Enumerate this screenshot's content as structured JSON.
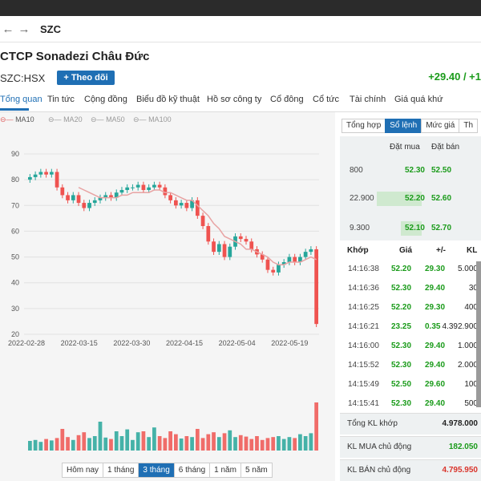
{
  "nav": {
    "back_icon": "arrow-left-icon",
    "forward_icon": "arrow-right-icon",
    "ticker": "SZC"
  },
  "header": {
    "title": "CTCP Sonadezi Châu Đức",
    "code": "SZC:HSX",
    "follow": "+ Theo dõi",
    "change": "+29.40 / +1"
  },
  "tabs": [
    "Tổng quan",
    "Tin tức",
    "Cộng đồng",
    "Biểu đồ kỹ thuật",
    "Hồ sơ công ty",
    "Cổ đông",
    "Cổ tức",
    "Tài chính",
    "Giá quá khứ"
  ],
  "legend": [
    "MA10",
    "MA20",
    "MA50",
    "MA100"
  ],
  "ranges": [
    "Hôm nay",
    "1 tháng",
    "3 tháng",
    "6 tháng",
    "1 năm",
    "5 năm"
  ],
  "right_tabs": [
    "Tổng hợp",
    "Sổ lệnh",
    "Mức giá",
    "Th"
  ],
  "orderbook": {
    "bid_label": "Đặt mua",
    "ask_label": "Đặt bán",
    "rows": [
      {
        "vol": "800",
        "bid": "52.30",
        "ask": "52.50"
      },
      {
        "vol": "22.900",
        "bid": "52.20",
        "ask": "52.60"
      },
      {
        "vol": "9.300",
        "bid": "52.10",
        "ask": "52.70"
      }
    ]
  },
  "trades": {
    "headers": [
      "Khớp",
      "Giá",
      "+/-",
      "KL"
    ],
    "rows": [
      {
        "time": "14:16:38",
        "price": "52.20",
        "chg": "29.30",
        "vol": "5.000"
      },
      {
        "time": "14:16:36",
        "price": "52.30",
        "chg": "29.40",
        "vol": "30"
      },
      {
        "time": "14:16:25",
        "price": "52.20",
        "chg": "29.30",
        "vol": "400"
      },
      {
        "time": "14:16:21",
        "price": "23.25",
        "chg": "0.35",
        "vol": "4.392.900"
      },
      {
        "time": "14:16:00",
        "price": "52.30",
        "chg": "29.40",
        "vol": "1.000"
      },
      {
        "time": "14:15:52",
        "price": "52.30",
        "chg": "29.40",
        "vol": "2.000"
      },
      {
        "time": "14:15:49",
        "price": "52.50",
        "chg": "29.60",
        "vol": "100"
      },
      {
        "time": "14:15:41",
        "price": "52.30",
        "chg": "29.40",
        "vol": "500"
      }
    ]
  },
  "summary": [
    {
      "label": "Tổng KL khớp",
      "value": "4.978.000",
      "color": "#222222"
    },
    {
      "label": "KL MUA chủ động",
      "value": "182.050",
      "color": "#1a9b1a"
    },
    {
      "label": "KL BÁN chủ động",
      "value": "4.795.950",
      "color": "#d9342b"
    }
  ],
  "colors": {
    "up": "#26a69a",
    "down": "#ef5350",
    "accent": "#1f6fb4",
    "ma": "#e8a3a3"
  },
  "chart_data": {
    "type": "candlestick",
    "y_ticks": [
      90,
      80,
      70,
      60,
      50,
      40,
      30,
      20
    ],
    "ylim": [
      20,
      90
    ],
    "x_ticks": [
      "2022-02-28",
      "2022-03-15",
      "2022-03-30",
      "2022-04-15",
      "2022-05-04",
      "2022-05-19"
    ],
    "closes": [
      81,
      82,
      83,
      82,
      83,
      77,
      74,
      72,
      74,
      71,
      69,
      71,
      72,
      73,
      74,
      73,
      75,
      76,
      77,
      77,
      78,
      76,
      77,
      78,
      77,
      74,
      72,
      70,
      71,
      69,
      72,
      66,
      62,
      56,
      52,
      55,
      50,
      54,
      58,
      57,
      56,
      53,
      51,
      49,
      45,
      44,
      47,
      48,
      50,
      48,
      50,
      52,
      53,
      24
    ],
    "ma10": [
      null,
      null,
      null,
      null,
      null,
      null,
      null,
      null,
      null,
      77,
      76,
      75,
      74,
      73,
      73,
      73,
      73,
      74,
      74,
      75,
      75,
      75,
      75,
      76,
      76,
      75,
      75,
      74,
      73,
      72,
      72,
      70,
      68,
      66,
      63,
      61,
      58,
      57,
      56,
      55,
      53,
      53,
      52,
      51,
      50,
      48,
      47,
      47,
      48,
      48,
      48,
      49,
      50,
      49
    ],
    "volumes": [
      20,
      22,
      18,
      24,
      21,
      26,
      45,
      28,
      22,
      32,
      38,
      26,
      30,
      60,
      27,
      24,
      40,
      30,
      44,
      22,
      38,
      40,
      28,
      48,
      30,
      26,
      40,
      34,
      25,
      30,
      28,
      45,
      26,
      34,
      38,
      28,
      36,
      42,
      28,
      32,
      29,
      24,
      30,
      22,
      26,
      28,
      30,
      24,
      28,
      26,
      34,
      30,
      36,
      100
    ]
  }
}
